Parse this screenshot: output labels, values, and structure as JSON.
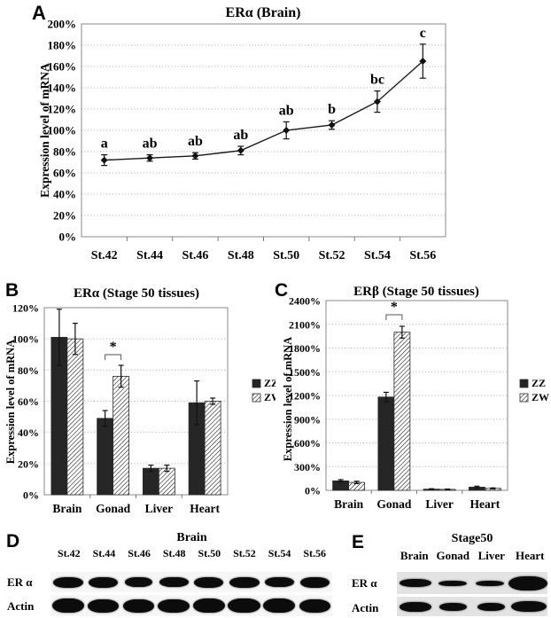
{
  "figure": {
    "panels": {
      "a": {
        "label": "A"
      },
      "b": {
        "label": "B"
      },
      "c": {
        "label": "C"
      },
      "d": {
        "label": "D"
      },
      "e": {
        "label": "E"
      }
    }
  },
  "colors": {
    "bar_solid": "#262626",
    "hatch_line": "#1c1c1c",
    "grid": "#ababab",
    "text": "#000000",
    "blot_band": "#0c0c0c"
  },
  "chart_data": [
    {
      "id": "chart-a",
      "type": "line",
      "title": "ERα (Brain)",
      "xlabel": "",
      "ylabel": "Expression level of mRNA",
      "categories": [
        "St.42",
        "St.44",
        "St.46",
        "St.48",
        "St.50",
        "St.52",
        "St.54",
        "St.56"
      ],
      "values": [
        72,
        74,
        76,
        81,
        100,
        105,
        127,
        165
      ],
      "errors": [
        5,
        3,
        3,
        4,
        8,
        4,
        10,
        16
      ],
      "point_labels": [
        "a",
        "ab",
        "ab",
        "ab",
        "ab",
        "b",
        "bc",
        "c"
      ],
      "ylim": [
        0,
        200
      ],
      "ytick_step": 20,
      "ytick_suffix": "%",
      "grid": "dotted",
      "marker": "diamond"
    },
    {
      "id": "chart-b",
      "type": "bar",
      "title": "ERα (Stage 50 tissues)",
      "xlabel": "",
      "ylabel": "Expression level of mRNA",
      "categories": [
        "Brain",
        "Gonad",
        "Liver",
        "Heart"
      ],
      "series": [
        {
          "name": "ZZ",
          "style": "solid",
          "values": [
            101,
            49,
            17,
            59
          ],
          "errors": [
            18,
            5,
            2,
            14
          ]
        },
        {
          "name": "ZW",
          "style": "hatched",
          "values": [
            100,
            76,
            17,
            60
          ],
          "errors": [
            10,
            7,
            2,
            2
          ]
        }
      ],
      "ylim": [
        0,
        120
      ],
      "ytick_step": 20,
      "ytick_suffix": "%",
      "grid": "dotted",
      "legend": [
        "ZZ",
        "ZW"
      ],
      "legend_position": "right",
      "significance": {
        "category": "Gonad",
        "label": "*"
      }
    },
    {
      "id": "chart-c",
      "type": "bar",
      "title": "ERβ (Stage 50 tissues)",
      "xlabel": "",
      "ylabel": "Expression level of mRNA",
      "categories": [
        "Brain",
        "Gonad",
        "Liver",
        "Heart"
      ],
      "series": [
        {
          "name": "ZZ",
          "style": "solid",
          "values": [
            120,
            1180,
            15,
            40
          ],
          "errors": [
            15,
            60,
            5,
            12
          ]
        },
        {
          "name": "ZW",
          "style": "hatched",
          "values": [
            100,
            2000,
            12,
            25
          ],
          "errors": [
            15,
            75,
            4,
            6
          ]
        }
      ],
      "ylim": [
        0,
        2400
      ],
      "ytick_step": 300,
      "ytick_suffix": "%",
      "grid": "dotted",
      "legend": [
        "ZZ",
        "ZW"
      ],
      "legend_position": "right",
      "significance": {
        "category": "Gonad",
        "label": "*"
      }
    }
  ],
  "blots": {
    "d": {
      "title": "Brain",
      "lanes": [
        "St.42",
        "St.44",
        "St.46",
        "St.48",
        "St.50",
        "St.52",
        "St.54",
        "St.56"
      ],
      "rows": [
        {
          "label": "ER α",
          "band_heights": [
            12,
            12,
            11,
            11,
            12,
            12,
            11,
            12
          ],
          "band_widths": [
            34,
            33,
            31,
            33,
            33,
            34,
            33,
            33
          ]
        },
        {
          "label": "Actin",
          "band_heights": [
            16,
            15,
            15,
            15,
            16,
            16,
            16,
            15
          ],
          "band_widths": [
            36,
            35,
            35,
            36,
            36,
            37,
            36,
            35
          ]
        }
      ]
    },
    "e": {
      "title": "Stage50",
      "lanes": [
        "Brain",
        "Gonad",
        "Liver",
        "Heart"
      ],
      "rows": [
        {
          "label": "ER α",
          "band_heights": [
            9,
            6,
            6,
            16
          ],
          "band_widths": [
            36,
            32,
            32,
            44
          ]
        },
        {
          "label": "Actin",
          "band_heights": [
            11,
            9,
            9,
            12
          ],
          "band_widths": [
            36,
            31,
            31,
            40
          ]
        }
      ]
    }
  }
}
